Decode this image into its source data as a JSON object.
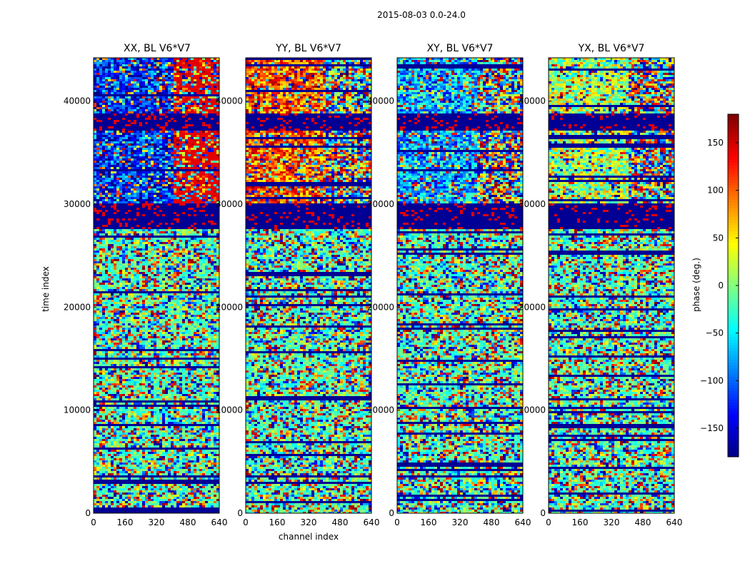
{
  "figure": {
    "suptitle": "2015-08-03 0.0-24.0",
    "ylabel": "time index",
    "xlabel": "channel index",
    "colorbar_label": "phase (deg.)"
  },
  "chart_data": {
    "type": "heatmap",
    "colormap": "jet",
    "panels": [
      {
        "title": "XX, BL V6*V7",
        "dominant": "blue-red"
      },
      {
        "title": "YY, BL V6*V7",
        "dominant": "red-yellow"
      },
      {
        "title": "XY, BL V6*V7",
        "dominant": "blue-cyan"
      },
      {
        "title": "YX, BL V6*V7",
        "dominant": "red-blue"
      }
    ],
    "xlim": [
      0,
      640
    ],
    "xticks": [
      0,
      160,
      320,
      480,
      640
    ],
    "xtick_labels": [
      "0",
      "160",
      "320",
      "480",
      "640"
    ],
    "ylim": [
      0,
      44200
    ],
    "yticks": [
      0,
      10000,
      20000,
      30000,
      40000
    ],
    "ytick_labels": [
      "0",
      "10000",
      "20000",
      "30000",
      "40000"
    ],
    "colorbar": {
      "vmin": -180,
      "vmax": 180,
      "ticks": [
        -150,
        -100,
        -50,
        0,
        50,
        100,
        150
      ],
      "tick_labels": [
        "−150",
        "−100",
        "−50",
        "0",
        "50",
        "100",
        "150"
      ]
    },
    "flagged_time_bands": [
      [
        27700,
        30200
      ],
      [
        37300,
        39000
      ]
    ]
  }
}
